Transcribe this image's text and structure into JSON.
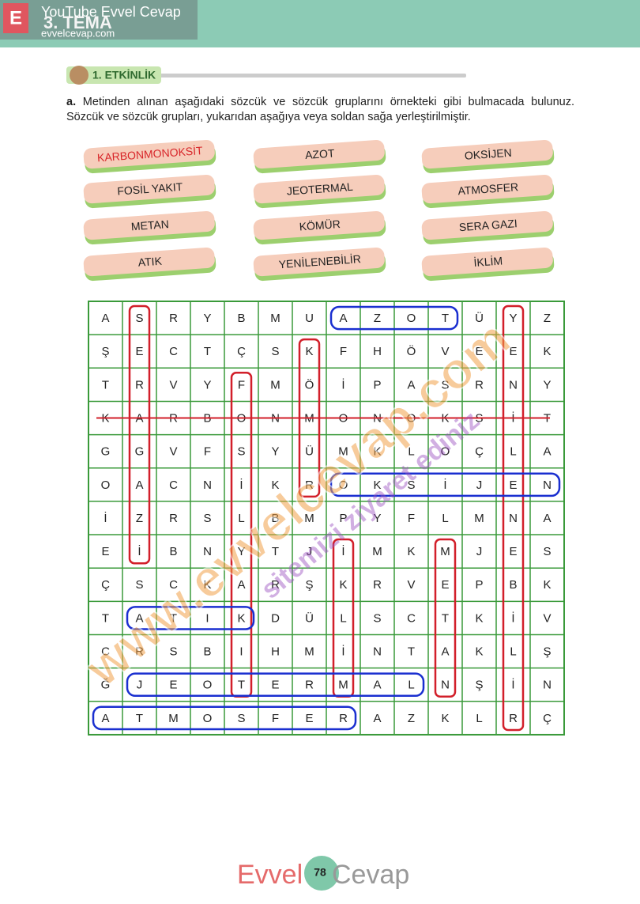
{
  "header": {
    "section": "3. TEMA",
    "watermark": "YouTube Evvel Cevap",
    "site": "evvelcevap.com"
  },
  "activity": {
    "title": "1. ETKİNLİK",
    "label": "a.",
    "instruction": "Metinden alınan aşağıdaki sözcük ve sözcük gruplarını örnekteki gibi bulmacada bulunuz. Sözcük ve sözcük grupları, yukarıdan aşağıya veya soldan sağa yerleştirilmiştir."
  },
  "words": [
    [
      "KARBONMONOKSİT",
      "FOSİL YAKIT",
      "METAN",
      "ATIK"
    ],
    [
      "AZOT",
      "JEOTERMAL",
      "KÖMÜR",
      "YENİLENEBİLİR"
    ],
    [
      "OKSİJEN",
      "ATMOSFER",
      "SERA GAZI",
      "İKLİM"
    ]
  ],
  "grid": [
    [
      "A",
      "S",
      "R",
      "Y",
      "B",
      "M",
      "U",
      "A",
      "Z",
      "O",
      "T",
      "Ü",
      "Y",
      "Z"
    ],
    [
      "Ş",
      "E",
      "C",
      "T",
      "Ç",
      "S",
      "K",
      "F",
      "H",
      "Ö",
      "V",
      "E",
      "E",
      "K"
    ],
    [
      "T",
      "R",
      "V",
      "Y",
      "F",
      "M",
      "Ö",
      "İ",
      "P",
      "A",
      "S",
      "R",
      "N",
      "Y"
    ],
    [
      "K",
      "A",
      "R",
      "B",
      "O",
      "N",
      "M",
      "O",
      "N",
      "O",
      "K",
      "S",
      "İ",
      "T"
    ],
    [
      "G",
      "G",
      "V",
      "F",
      "S",
      "Y",
      "Ü",
      "M",
      "K",
      "L",
      "O",
      "Ç",
      "L",
      "A"
    ],
    [
      "O",
      "A",
      "C",
      "N",
      "İ",
      "K",
      "R",
      "O",
      "K",
      "S",
      "İ",
      "J",
      "E",
      "N"
    ],
    [
      "İ",
      "Z",
      "R",
      "S",
      "L",
      "B",
      "M",
      "P",
      "Y",
      "F",
      "L",
      "M",
      "N",
      "A"
    ],
    [
      "E",
      "İ",
      "B",
      "N",
      "Y",
      "T",
      "J",
      "İ",
      "M",
      "K",
      "M",
      "J",
      "E",
      "S"
    ],
    [
      "Ç",
      "S",
      "C",
      "K",
      "A",
      "R",
      "Ş",
      "K",
      "R",
      "V",
      "E",
      "P",
      "B",
      "K"
    ],
    [
      "T",
      "A",
      "T",
      "I",
      "K",
      "D",
      "Ü",
      "L",
      "S",
      "C",
      "T",
      "K",
      "İ",
      "V"
    ],
    [
      "C",
      "R",
      "S",
      "B",
      "I",
      "H",
      "M",
      "İ",
      "N",
      "T",
      "A",
      "K",
      "L",
      "Ş"
    ],
    [
      "Ğ",
      "J",
      "E",
      "O",
      "T",
      "E",
      "R",
      "M",
      "A",
      "L",
      "N",
      "Ş",
      "İ",
      "N"
    ],
    [
      "A",
      "T",
      "M",
      "O",
      "S",
      "F",
      "E",
      "R",
      "A",
      "Z",
      "K",
      "L",
      "R",
      "Ç"
    ]
  ],
  "diagonal_watermark": "www.evvelcevap.com",
  "diagonal_note": "sitemizi ziyaret ediniz",
  "footer": {
    "page": "78",
    "logo_left": "Evvel",
    "logo_right": "Cevap"
  }
}
